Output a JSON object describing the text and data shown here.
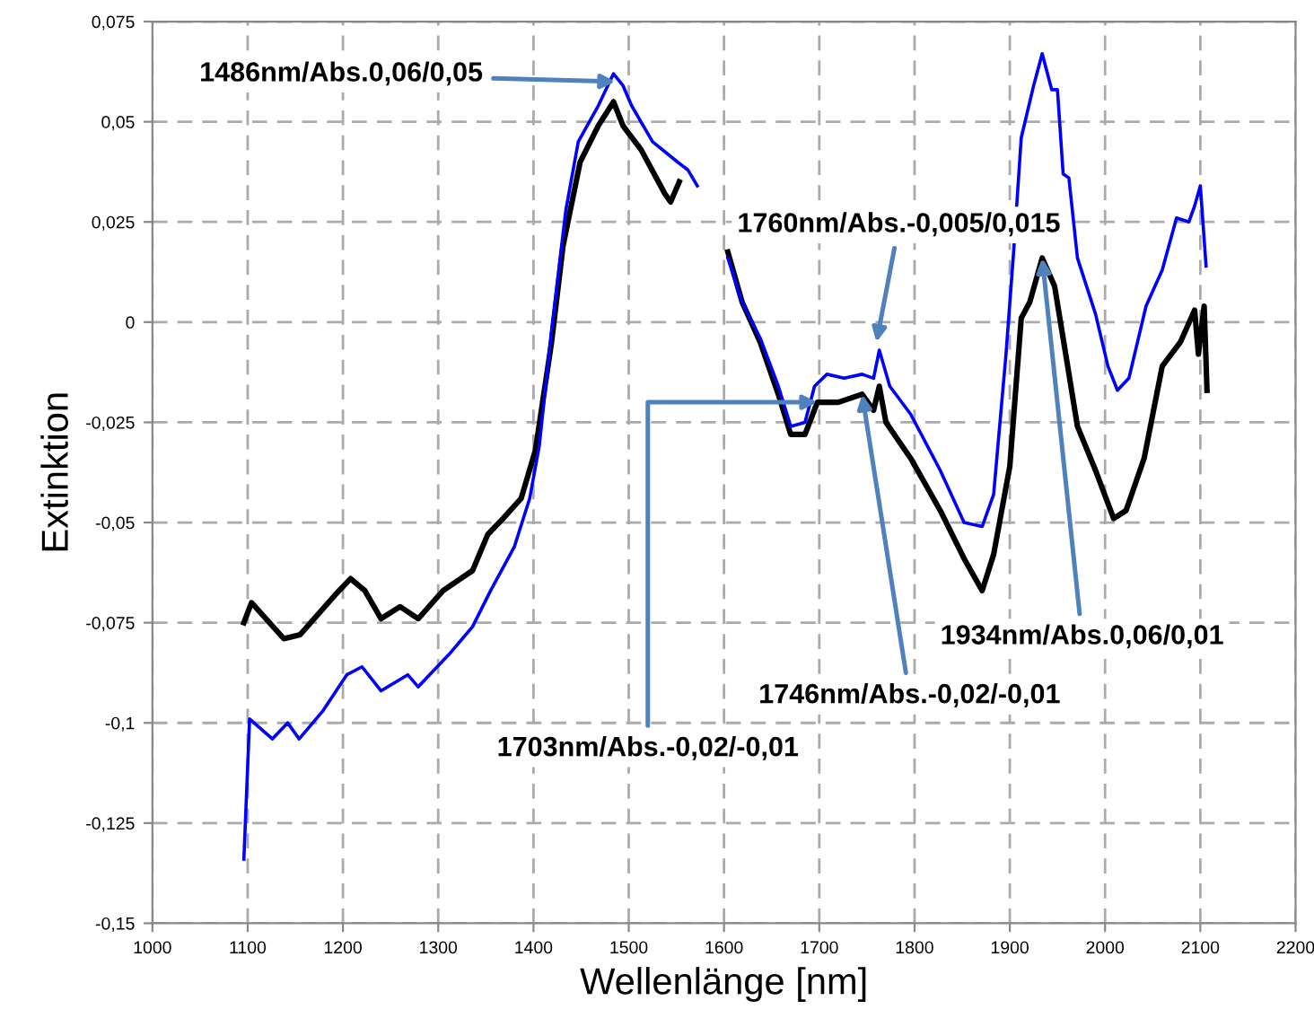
{
  "chart_data": {
    "type": "line",
    "xlabel": "Wellenlänge [nm]",
    "ylabel": "Extinktion",
    "grid": true,
    "line_style": "solid",
    "marker": "none",
    "xlim": [
      1000,
      2200
    ],
    "xticks": [
      1000,
      1100,
      1200,
      1300,
      1400,
      1500,
      1600,
      1700,
      1800,
      1900,
      2000,
      2100,
      2200
    ],
    "ylim": [
      -0.15,
      0.075
    ],
    "yticks": [
      {
        "value": -0.15,
        "label": "-0,15"
      },
      {
        "value": -0.125,
        "label": "-0,125"
      },
      {
        "value": -0.1,
        "label": "-0,1"
      },
      {
        "value": -0.075,
        "label": "-0,075"
      },
      {
        "value": -0.05,
        "label": "-0,05"
      },
      {
        "value": -0.025,
        "label": "-0,025"
      },
      0,
      {
        "value": 0.025,
        "label": "0,025"
      },
      {
        "value": 0.05,
        "label": "0,05"
      },
      {
        "value": 0.075,
        "label": "0,075"
      }
    ],
    "series": [
      {
        "color": "#000000",
        "x": [
          1096,
          1104,
          1138,
          1155,
          1192,
          1208,
          1223,
          1240,
          1260,
          1279,
          1305,
          1336,
          1352,
          1368,
          1387,
          1402,
          1419,
          1431,
          1449,
          1468,
          1484,
          1494,
          1513,
          1538,
          1544,
          1553,
          1580,
          1604,
          1619,
          1638,
          1657,
          1670,
          1685,
          1698,
          1720,
          1745,
          1757,
          1763,
          1770,
          1796,
          1827,
          1852,
          1871,
          1883,
          1900,
          1912,
          1921,
          1934,
          1947,
          1958,
          1971,
          1990,
          2009,
          2022,
          2041,
          2060,
          2079,
          2094,
          2098,
          2104,
          2107
        ],
        "values": [
          -0.075,
          -0.07,
          -0.079,
          -0.078,
          -0.068,
          -0.064,
          -0.067,
          -0.074,
          -0.071,
          -0.074,
          -0.067,
          -0.062,
          -0.053,
          -0.049,
          -0.044,
          -0.032,
          -0.005,
          0.019,
          0.04,
          0.049,
          0.055,
          0.049,
          0.043,
          0.032,
          0.03,
          0.035,
          null,
          0.0175,
          0.005,
          -0.005,
          -0.018,
          -0.028,
          -0.028,
          -0.02,
          -0.02,
          -0.018,
          -0.022,
          -0.016,
          -0.025,
          -0.034,
          -0.047,
          -0.059,
          -0.067,
          -0.058,
          -0.036,
          0.001,
          0.005,
          0.016,
          0.009,
          -0.007,
          -0.026,
          -0.037,
          -0.049,
          -0.047,
          -0.034,
          -0.011,
          -0.005,
          0.003,
          -0.008,
          0.004,
          -0.017
        ]
      },
      {
        "color": "#0000ff",
        "x": [
          1096,
          1102,
          1126,
          1142,
          1154,
          1179,
          1204,
          1220,
          1240,
          1268,
          1279,
          1311,
          1336,
          1355,
          1380,
          1396,
          1406,
          1419,
          1434,
          1447,
          1468,
          1484,
          1494,
          1503,
          1525,
          1551,
          1562,
          1572,
          1590,
          1604,
          1619,
          1638,
          1657,
          1670,
          1685,
          1695,
          1708,
          1726,
          1745,
          1757,
          1763,
          1774,
          1796,
          1827,
          1852,
          1871,
          1883,
          1896,
          1904,
          1912,
          1925,
          1934,
          1944,
          1950,
          1956,
          1962,
          1971,
          1990,
          2003,
          2013,
          2025,
          2043,
          2060,
          2075,
          2088,
          2094,
          2100,
          2106
        ],
        "values": [
          -0.134,
          -0.099,
          -0.104,
          -0.1,
          -0.104,
          -0.097,
          -0.088,
          -0.086,
          -0.092,
          -0.088,
          -0.091,
          -0.083,
          -0.076,
          -0.067,
          -0.056,
          -0.044,
          -0.031,
          -0.002,
          0.028,
          0.045,
          0.054,
          0.062,
          0.059,
          0.054,
          0.045,
          0.04,
          0.038,
          0.034,
          null,
          0.016,
          0.005,
          -0.004,
          -0.016,
          -0.026,
          -0.025,
          -0.016,
          -0.013,
          -0.014,
          -0.013,
          -0.014,
          -0.007,
          -0.016,
          -0.023,
          -0.037,
          -0.05,
          -0.051,
          -0.043,
          -0.008,
          0.0175,
          0.046,
          0.059,
          0.067,
          0.058,
          0.058,
          0.037,
          0.036,
          0.016,
          0.002,
          -0.011,
          -0.017,
          -0.014,
          0.004,
          0.013,
          0.026,
          0.025,
          0.029,
          0.034,
          0.014
        ]
      }
    ],
    "annotations": [
      {
        "text": "1486nm/Abs.0,06/0,05",
        "x": 1486,
        "y": 0.06
      },
      {
        "text": "1760nm/Abs.-0,005/0,015",
        "x": 1760,
        "y": -0.005
      },
      {
        "text": "1703nm/Abs.-0,02/-0,01",
        "x": 1698,
        "y": -0.02
      },
      {
        "text": "1746nm/Abs.-0,02/-0,01",
        "x": 1745,
        "y": -0.018
      },
      {
        "text": "1934nm/Abs.0,06/0,01",
        "x": 1934,
        "y": 0.016
      }
    ]
  }
}
